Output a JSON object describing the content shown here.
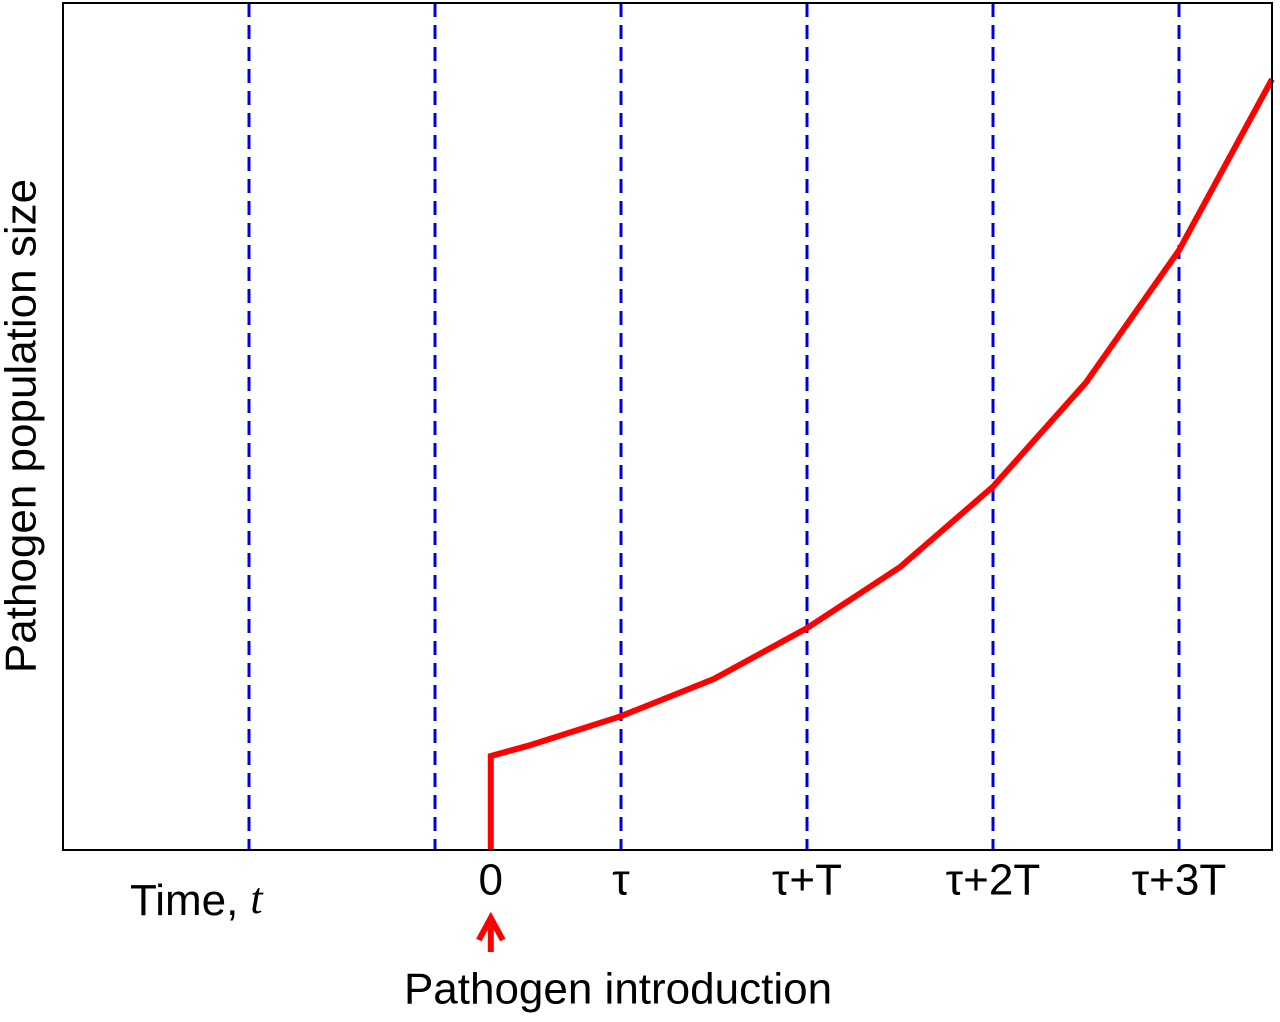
{
  "chart_data": {
    "type": "line",
    "ylabel": "Pathogen population size",
    "xlabel": {
      "text": "Time,",
      "variable": "t"
    },
    "annotation": {
      "text": "Pathogen introduction",
      "x": 0,
      "color": "#ff0000"
    },
    "xlim": [
      -2.3,
      4.2
    ],
    "ylim": [
      0,
      100
    ],
    "xticks": [
      0,
      {
        "value": 0.7,
        "label": "τ"
      },
      {
        "value": 1.7,
        "label": "τ+T"
      },
      {
        "value": 2.7,
        "label": "τ+2T"
      },
      {
        "value": 3.7,
        "label": "τ+3T"
      }
    ],
    "vlines": [
      -1.3,
      -0.3,
      0.7,
      1.7,
      2.7,
      3.7
    ],
    "vline_color": "#0000dd",
    "series": [
      {
        "color": "#ff0000",
        "x": [
          0,
          0,
          0.2,
          0.7,
          1.2,
          1.7,
          2.2,
          2.7,
          3.2,
          3.7,
          4.2
        ],
        "values": [
          0,
          11.1,
          12.3,
          15.8,
          20.2,
          26.2,
          33.4,
          42.9,
          55.2,
          70.8,
          91.0
        ]
      }
    ]
  }
}
